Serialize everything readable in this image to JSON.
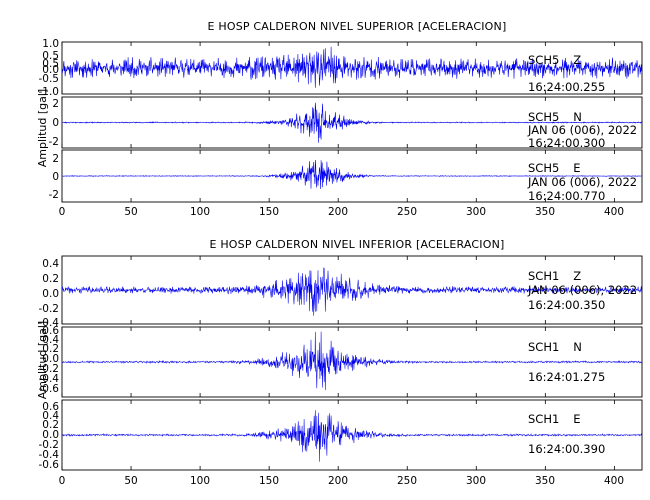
{
  "chart_data": [
    {
      "type": "line",
      "title": "E HOSP CALDERON NIVEL SUPERIOR [ACELERACION]",
      "ylabel": "Amplitud [gal]",
      "xlim": [
        0,
        420
      ],
      "x_ticks": [
        "0",
        "50",
        "100",
        "150",
        "200",
        "250",
        "300",
        "350",
        "400"
      ],
      "series": [
        {
          "station": "SCH5",
          "component": "Z",
          "date": "",
          "time": "16:24:00.255",
          "ylim": [
            -1.0,
            1.0
          ],
          "y_ticks": [
            "1.0",
            "0.5",
            "0.5",
            "0.0",
            "-0.5",
            "-1.0"
          ],
          "color": "#0000ee",
          "signal": {
            "noise": 0.42,
            "peak": 0.95,
            "center_s": 185,
            "spread_s": 40
          }
        },
        {
          "station": "SCH5",
          "component": "N",
          "date": "JAN 06 (006), 2022",
          "time": "16:24:00.300",
          "ylim": [
            -2,
            2
          ],
          "y_ticks": [
            "2",
            "0",
            "-2"
          ],
          "color": "#0000ee",
          "signal": {
            "noise": 0.05,
            "peak": 1.9,
            "center_s": 185,
            "spread_s": 22
          }
        },
        {
          "station": "SCH5",
          "component": "E",
          "date": "JAN 06 (006), 2022",
          "time": "16:24:00.770",
          "ylim": [
            -3,
            3
          ],
          "y_ticks": [
            "2",
            "0",
            "-2"
          ],
          "color": "#0000ee",
          "signal": {
            "noise": 0.05,
            "peak": 2.6,
            "center_s": 186,
            "spread_s": 22
          }
        }
      ]
    },
    {
      "type": "line",
      "title": "E HOSP CALDERON NIVEL INFERIOR [ACELERACION]",
      "ylabel": "Amplitud [gal]",
      "xlim": [
        0,
        420
      ],
      "x_ticks": [
        "0",
        "50",
        "100",
        "150",
        "200",
        "250",
        "300",
        "350",
        "400"
      ],
      "series": [
        {
          "station": "SCH1",
          "component": "Z",
          "date": "JAN 06 (006), 2022",
          "time": "16:24:00.350",
          "ylim": [
            -0.45,
            0.45
          ],
          "y_ticks": [
            "0.4",
            "0.2",
            "0.0",
            "-0.2",
            "-0.4"
          ],
          "color": "#0000ee",
          "signal": {
            "noise": 0.05,
            "peak": 0.42,
            "center_s": 185,
            "spread_s": 35
          }
        },
        {
          "station": "SCH1",
          "component": "N",
          "date": "",
          "time": "16:24:01.275",
          "ylim": [
            -0.65,
            0.65
          ],
          "y_ticks": [
            "0.6",
            "0.4",
            "0.2",
            "0.0",
            "-0.2",
            "-0.4",
            "-0.6"
          ],
          "color": "#0000ee",
          "signal": {
            "noise": 0.02,
            "peak": 0.6,
            "center_s": 185,
            "spread_s": 32
          }
        },
        {
          "station": "SCH1",
          "component": "E",
          "date": "",
          "time": "16:24:00.390",
          "ylim": [
            -0.65,
            0.65
          ],
          "y_ticks": [
            "0.6",
            "0.4",
            "0.2",
            "0.0",
            "-0.2",
            "-0.4",
            "-0.6"
          ],
          "color": "#0000ee",
          "signal": {
            "noise": 0.02,
            "peak": 0.55,
            "center_s": 186,
            "spread_s": 30
          }
        }
      ]
    }
  ]
}
